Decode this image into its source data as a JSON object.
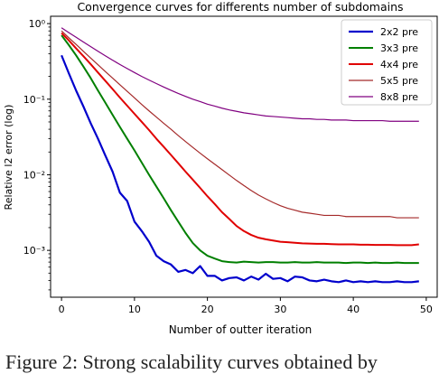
{
  "chart_data": {
    "type": "line",
    "title": "Convergence curves for differents number of subdomains",
    "xlabel": "Number of outter iteration",
    "ylabel": "Relative l2 error (log)",
    "yscale": "log",
    "xlim": [
      -1.5,
      51.5
    ],
    "ylim": [
      0.00024,
      1.25
    ],
    "grid": false,
    "legend_position": "top-right",
    "x_ticks": [
      0,
      10,
      20,
      30,
      40,
      50
    ],
    "y_ticks": [
      {
        "value": 0.001,
        "label": "10⁻³"
      },
      {
        "value": 0.01,
        "label": "10⁻²"
      },
      {
        "value": 0.1,
        "label": "10⁻¹"
      },
      {
        "value": 1,
        "label": "10⁰"
      }
    ],
    "x": [
      0,
      1,
      2,
      3,
      4,
      5,
      6,
      7,
      8,
      9,
      10,
      11,
      12,
      13,
      14,
      15,
      16,
      17,
      18,
      19,
      20,
      21,
      22,
      23,
      24,
      25,
      26,
      27,
      28,
      29,
      30,
      31,
      32,
      33,
      34,
      35,
      36,
      37,
      38,
      39,
      40,
      41,
      42,
      43,
      44,
      45,
      46,
      47,
      48,
      49
    ],
    "series": [
      {
        "name": "2x2 pre",
        "color": "#0000cc",
        "width": 2.2,
        "values": [
          0.38,
          0.22,
          0.13,
          0.08,
          0.048,
          0.03,
          0.018,
          0.011,
          0.0058,
          0.0045,
          0.0024,
          0.0018,
          0.0013,
          0.00085,
          0.00072,
          0.00065,
          0.00052,
          0.00055,
          0.0005,
          0.00062,
          0.00046,
          0.00046,
          0.0004,
          0.00043,
          0.00044,
          0.0004,
          0.00045,
          0.00041,
          0.00049,
          0.00042,
          0.00043,
          0.00039,
          0.00045,
          0.00044,
          0.0004,
          0.00039,
          0.00041,
          0.00039,
          0.00038,
          0.0004,
          0.00038,
          0.00039,
          0.00038,
          0.00039,
          0.00038,
          0.00038,
          0.00039,
          0.00038,
          0.00038,
          0.00039
        ]
      },
      {
        "name": "3x3 pre",
        "color": "#007f00",
        "width": 2.0,
        "values": [
          0.7,
          0.52,
          0.38,
          0.27,
          0.19,
          0.13,
          0.09,
          0.062,
          0.043,
          0.03,
          0.021,
          0.0145,
          0.01,
          0.007,
          0.0049,
          0.0034,
          0.0024,
          0.0017,
          0.00125,
          0.001,
          0.00085,
          0.00078,
          0.00072,
          0.0007,
          0.00069,
          0.00071,
          0.0007,
          0.00069,
          0.0007,
          0.0007,
          0.00069,
          0.00069,
          0.0007,
          0.00069,
          0.00069,
          0.0007,
          0.00069,
          0.00069,
          0.00069,
          0.00068,
          0.00069,
          0.00069,
          0.00068,
          0.00069,
          0.00068,
          0.00068,
          0.00069,
          0.00068,
          0.00068,
          0.00068
        ]
      },
      {
        "name": "4x4 pre",
        "color": "#e00000",
        "width": 2.0,
        "values": [
          0.75,
          0.6,
          0.47,
          0.37,
          0.29,
          0.225,
          0.175,
          0.136,
          0.105,
          0.082,
          0.064,
          0.05,
          0.039,
          0.03,
          0.0235,
          0.0183,
          0.0142,
          0.011,
          0.0086,
          0.0067,
          0.0052,
          0.0041,
          0.0032,
          0.0026,
          0.0021,
          0.0018,
          0.0016,
          0.00147,
          0.0014,
          0.00135,
          0.0013,
          0.00128,
          0.00126,
          0.00124,
          0.00123,
          0.00122,
          0.00122,
          0.00121,
          0.0012,
          0.0012,
          0.0012,
          0.00119,
          0.00119,
          0.00118,
          0.00118,
          0.00118,
          0.00117,
          0.00117,
          0.00117,
          0.0012
        ]
      },
      {
        "name": "5x5 pre",
        "color": "#a52a2a",
        "width": 1.2,
        "values": [
          0.8,
          0.65,
          0.53,
          0.43,
          0.35,
          0.285,
          0.232,
          0.19,
          0.155,
          0.127,
          0.104,
          0.085,
          0.07,
          0.058,
          0.048,
          0.04,
          0.033,
          0.0275,
          0.023,
          0.0193,
          0.0163,
          0.0138,
          0.0117,
          0.0099,
          0.0084,
          0.0072,
          0.0062,
          0.0054,
          0.0048,
          0.0043,
          0.0039,
          0.0036,
          0.0034,
          0.0032,
          0.0031,
          0.003,
          0.0029,
          0.0029,
          0.0029,
          0.0028,
          0.0028,
          0.0028,
          0.0028,
          0.0028,
          0.0028,
          0.0028,
          0.0027,
          0.0027,
          0.0027,
          0.0027
        ]
      },
      {
        "name": "8x8 pre",
        "color": "#800080",
        "width": 1.2,
        "values": [
          0.88,
          0.76,
          0.66,
          0.57,
          0.495,
          0.43,
          0.375,
          0.328,
          0.288,
          0.254,
          0.225,
          0.2,
          0.179,
          0.161,
          0.145,
          0.131,
          0.119,
          0.109,
          0.1,
          0.093,
          0.086,
          0.081,
          0.076,
          0.072,
          0.069,
          0.066,
          0.064,
          0.062,
          0.06,
          0.059,
          0.058,
          0.057,
          0.056,
          0.055,
          0.055,
          0.054,
          0.054,
          0.053,
          0.053,
          0.053,
          0.052,
          0.052,
          0.052,
          0.052,
          0.052,
          0.051,
          0.051,
          0.051,
          0.051,
          0.051
        ]
      }
    ]
  },
  "caption": "Figure 2: Strong scalability curves obtained by"
}
